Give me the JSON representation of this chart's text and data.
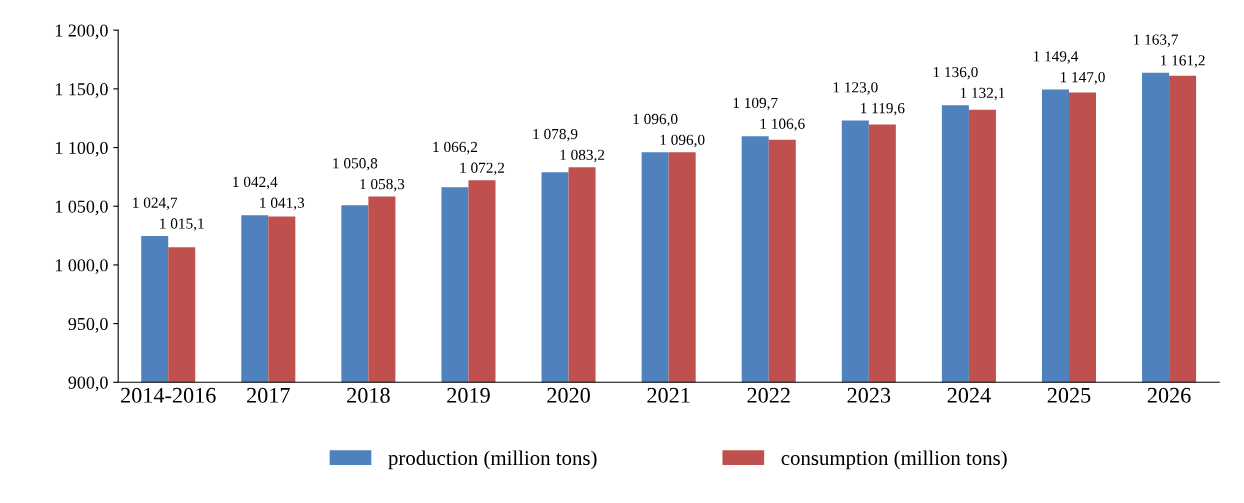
{
  "chart_data": {
    "type": "bar",
    "categories": [
      "2014-2016",
      "2017",
      "2018",
      "2019",
      "2020",
      "2021",
      "2022",
      "2023",
      "2024",
      "2025",
      "2026"
    ],
    "series": [
      {
        "name": "production (million tons)",
        "color": "#4f81bd",
        "values": [
          1024.7,
          1042.4,
          1050.8,
          1066.2,
          1078.9,
          1096.0,
          1109.7,
          1123.0,
          1136.0,
          1149.4,
          1163.7
        ],
        "value_labels": [
          "1 024,7",
          "1 042,4",
          "1 050,8",
          "1 066,2",
          "1 078,9",
          "1 096,0",
          "1 109,7",
          "1 123,0",
          "1 136,0",
          "1 149,4",
          "1 163,7"
        ]
      },
      {
        "name": "consumption (million tons)",
        "color": "#c0504d",
        "values": [
          1015.1,
          1041.3,
          1058.3,
          1072.2,
          1083.2,
          1096.0,
          1106.6,
          1119.6,
          1132.1,
          1147.0,
          1161.2
        ],
        "value_labels": [
          "1 015,1",
          "1 041,3",
          "1 058,3",
          "1 072,2",
          "1 083,2",
          "1 096,0",
          "1 106,6",
          "1 119,6",
          "1 132,1",
          "1 147,0",
          "1 161,2"
        ]
      }
    ],
    "ylim": [
      900,
      1200
    ],
    "yticks": [
      {
        "value": 900,
        "label": "900,0"
      },
      {
        "value": 950,
        "label": "950,0"
      },
      {
        "value": 1000,
        "label": "1 000,0"
      },
      {
        "value": 1050,
        "label": "1 050,0"
      },
      {
        "value": 1100,
        "label": "1 100,0"
      },
      {
        "value": 1150,
        "label": "1 150,0"
      },
      {
        "value": 1200,
        "label": "1 200,0"
      }
    ],
    "grid": false,
    "legend": "bottom"
  }
}
